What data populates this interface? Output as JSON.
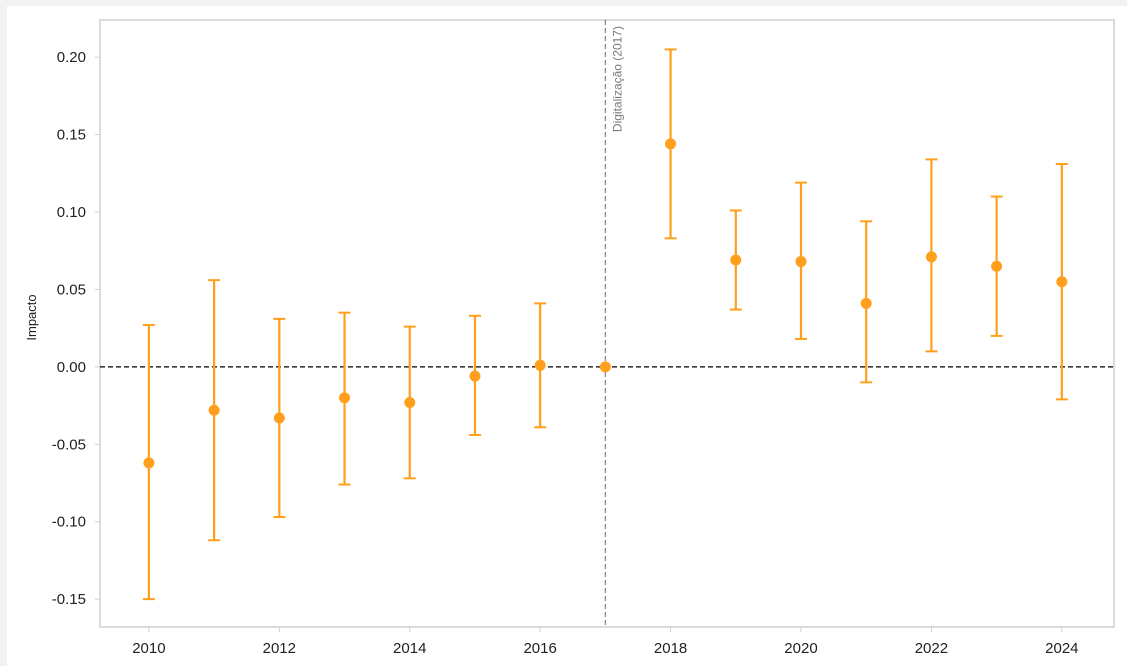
{
  "chart_data": {
    "type": "scatter",
    "title": "",
    "xlabel": "",
    "ylabel": "Impacto",
    "x": [
      2010,
      2011,
      2012,
      2013,
      2014,
      2015,
      2016,
      2017,
      2018,
      2019,
      2020,
      2021,
      2022,
      2023,
      2024
    ],
    "series": [
      {
        "values": [
          -0.062,
          -0.028,
          -0.033,
          -0.02,
          -0.023,
          -0.006,
          0.001,
          0.0,
          0.144,
          0.069,
          0.068,
          0.041,
          0.071,
          0.065,
          0.055
        ],
        "lower": [
          -0.15,
          -0.112,
          -0.097,
          -0.076,
          -0.072,
          -0.044,
          -0.039,
          0.0,
          0.083,
          0.037,
          0.018,
          -0.01,
          0.01,
          0.02,
          -0.021
        ],
        "upper": [
          0.027,
          0.056,
          0.031,
          0.035,
          0.026,
          0.033,
          0.041,
          0.0,
          0.205,
          0.101,
          0.119,
          0.094,
          0.134,
          0.11,
          0.131
        ]
      }
    ],
    "xlim": [
      2009.25,
      2024.8
    ],
    "ylim": [
      -0.168,
      0.224
    ],
    "xticks": [
      "2010",
      "2012",
      "2014",
      "2016",
      "2018",
      "2020",
      "2022",
      "2024"
    ],
    "yticks": [
      "-0.15",
      "-0.10",
      "-0.05",
      "0.00",
      "0.05",
      "0.10",
      "0.15",
      "0.20"
    ],
    "reference_lines": {
      "horizontal": {
        "y": 0.0,
        "style": "dashed"
      },
      "vertical": {
        "x": 2017,
        "style": "dashed",
        "label": "Digitalização (2017)"
      }
    },
    "grid": false,
    "legend": "none",
    "colors": {
      "series": "#ff9f1c",
      "zero_line": "#000000",
      "event_line": "#8a8a8a",
      "frame": "#cfcfcf"
    }
  }
}
